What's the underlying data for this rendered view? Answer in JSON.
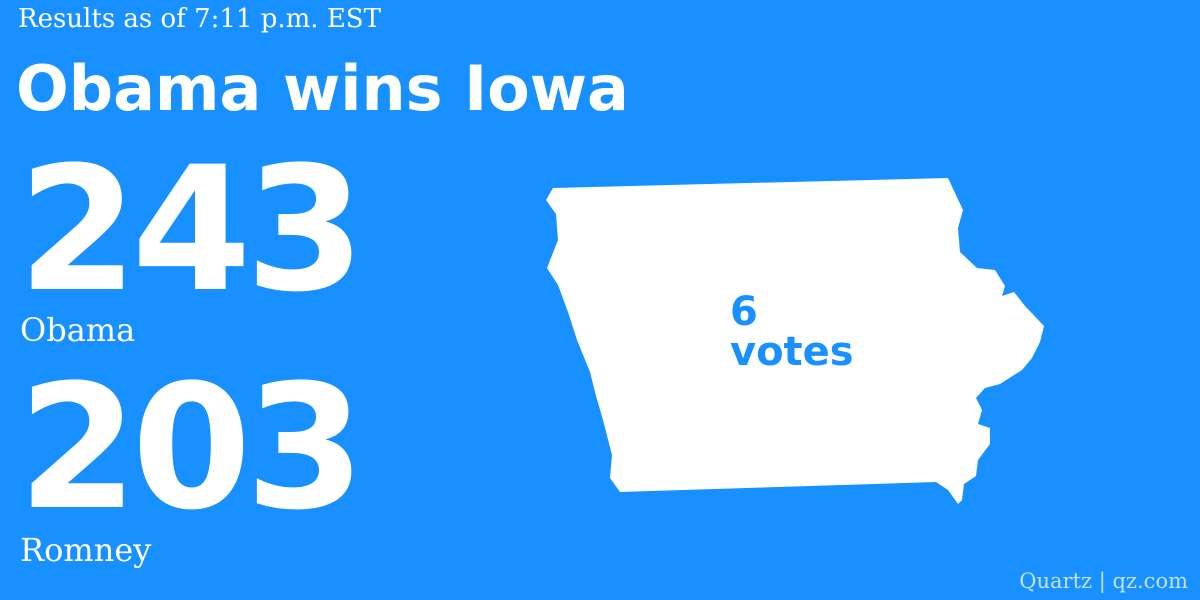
{
  "header": {
    "timestamp": "Results as of 7:11 p.m. EST",
    "headline": "Obama wins Iowa"
  },
  "tally": {
    "obama": {
      "count": "243",
      "name": "Obama"
    },
    "romney": {
      "count": "203",
      "name": "Romney"
    }
  },
  "state": {
    "name": "Iowa",
    "votes_number": "6",
    "votes_label": "votes"
  },
  "footer": {
    "credit": "Quartz | qz.com"
  },
  "colors": {
    "background": "#1890ff",
    "text": "#ffffff",
    "credit": "#bfe2ff"
  }
}
